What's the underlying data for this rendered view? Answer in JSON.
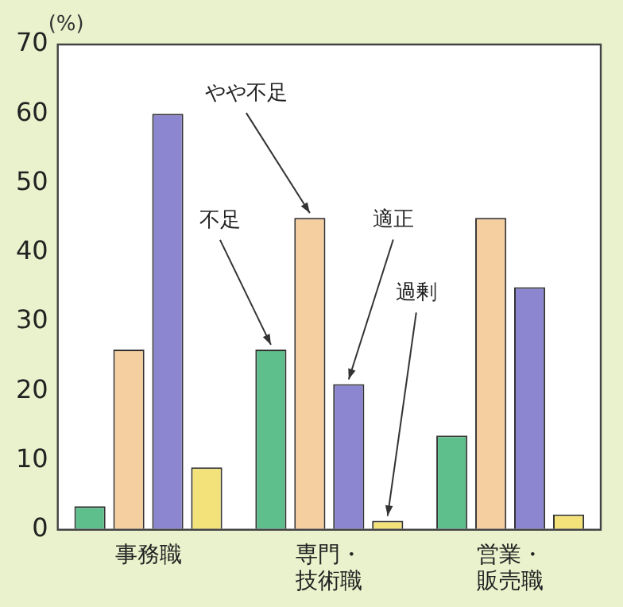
{
  "chart_data": {
    "type": "bar",
    "ylabel": "(%)",
    "categories": [
      "事務職",
      "専門・技術職",
      "営業・販売職"
    ],
    "series": [
      {
        "name": "不足",
        "color": "#5fbf8c",
        "values": [
          3.4,
          26,
          13.6
        ]
      },
      {
        "name": "やや不足",
        "color": "#f6cfa0",
        "values": [
          26,
          45,
          45
        ]
      },
      {
        "name": "適正",
        "color": "#8c86d0",
        "values": [
          60,
          21,
          35
        ]
      },
      {
        "name": "過剰",
        "color": "#f3e27a",
        "values": [
          9,
          1.3,
          2.2
        ]
      }
    ],
    "ylim": [
      0,
      70
    ],
    "yticks": [
      0,
      10,
      20,
      30,
      40,
      50,
      60,
      70
    ],
    "grid": false,
    "legend": false
  }
}
